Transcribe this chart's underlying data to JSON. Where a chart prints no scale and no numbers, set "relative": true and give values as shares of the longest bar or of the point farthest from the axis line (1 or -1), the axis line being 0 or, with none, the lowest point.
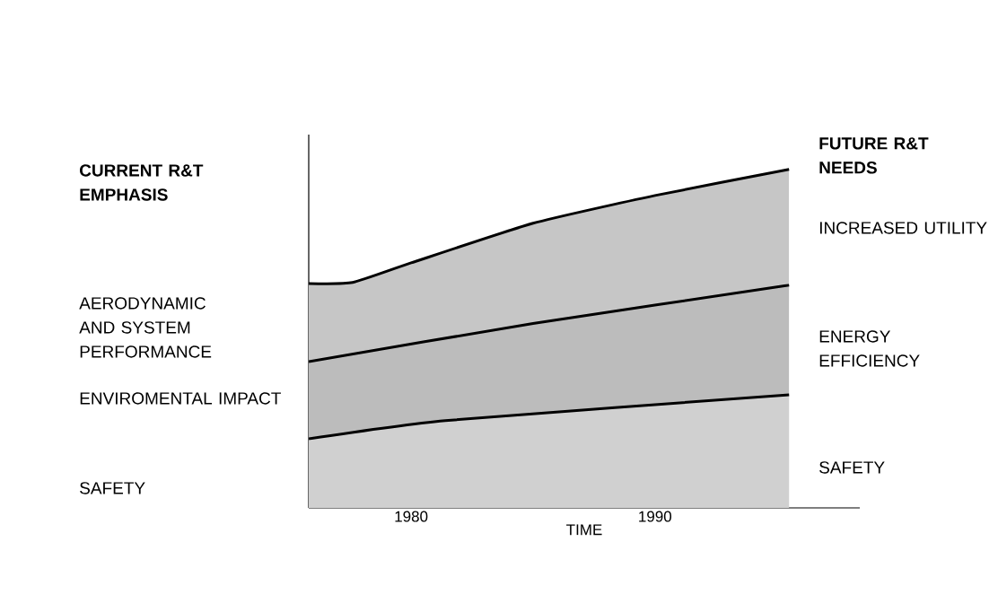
{
  "chart_data": {
    "type": "area",
    "relative": true,
    "xlabel": "TIME",
    "xlim": [
      1975.8,
      1998.4
    ],
    "xticks": [
      1980,
      1990
    ],
    "series": [
      {
        "color": "#c6c6c6",
        "x": [
          1975.8,
          1977.6,
          1980,
          1985,
          1990,
          1995.5
        ],
        "values": [
          0.663,
          0.666,
          0.724,
          0.841,
          0.923,
          1
        ]
      },
      {
        "color": "#bcbcbc",
        "x": [
          1975.8,
          1985,
          1995.5
        ],
        "values": [
          0.432,
          0.545,
          0.658
        ]
      },
      {
        "color": "#d0d0d0",
        "x": [
          1975.8,
          1981.4,
          1995.5
        ],
        "values": [
          0.204,
          0.258,
          0.334
        ]
      }
    ],
    "annotations": [
      "CURRENT R&T EMPHASIS",
      "AERODYNAMIC AND SYSTEM PERFORMANCE",
      "ENVIROMENTAL IMPACT",
      "SAFETY",
      "FUTURE R&T NEEDS",
      "INCREASED UTILITY",
      "ENERGY EFFICIENCY",
      "SAFETY"
    ]
  }
}
